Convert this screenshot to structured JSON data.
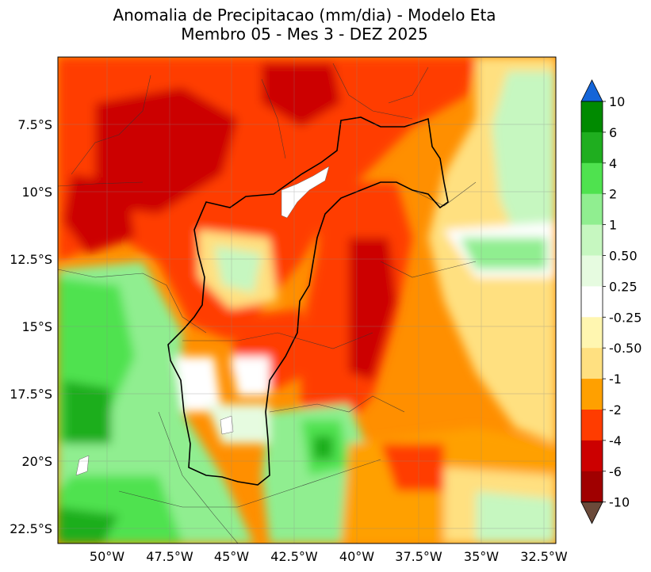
{
  "title": {
    "line1": "Anomalia de Precipitacao (mm/dia) - Modelo Eta",
    "line2": "Membro 05 - Mes 3 - DEZ 2025"
  },
  "map": {
    "lon_range": [
      -52.5,
      -31.5
    ],
    "lat_range": [
      -23.0,
      -4.8
    ],
    "x_ticks": [
      "50°W",
      "47.5°W",
      "45°W",
      "42.5°W",
      "40°W",
      "37.5°W",
      "35°W",
      "32.5°W"
    ],
    "y_ticks": [
      "7.5°S",
      "10°S",
      "12.5°S",
      "15°S",
      "17.5°S",
      "20°S",
      "22.5°S"
    ]
  },
  "colorbar": {
    "labels": [
      "10",
      "6",
      "4",
      "2",
      "1",
      "0.50",
      "0.25",
      "-0.25",
      "-0.50",
      "-1",
      "-2",
      "-4",
      "-6",
      "-10"
    ],
    "colors": [
      "#008a00",
      "#1fae1f",
      "#4fe24f",
      "#90ee90",
      "#c6f7c0",
      "#e6fbe0",
      "#ffffff",
      "#fff6b0",
      "#ffe080",
      "#ffa000",
      "#ff3c00",
      "#cc0000",
      "#a00000"
    ],
    "over_color": "#1565d8",
    "under_color": "#6b4a3a"
  }
}
